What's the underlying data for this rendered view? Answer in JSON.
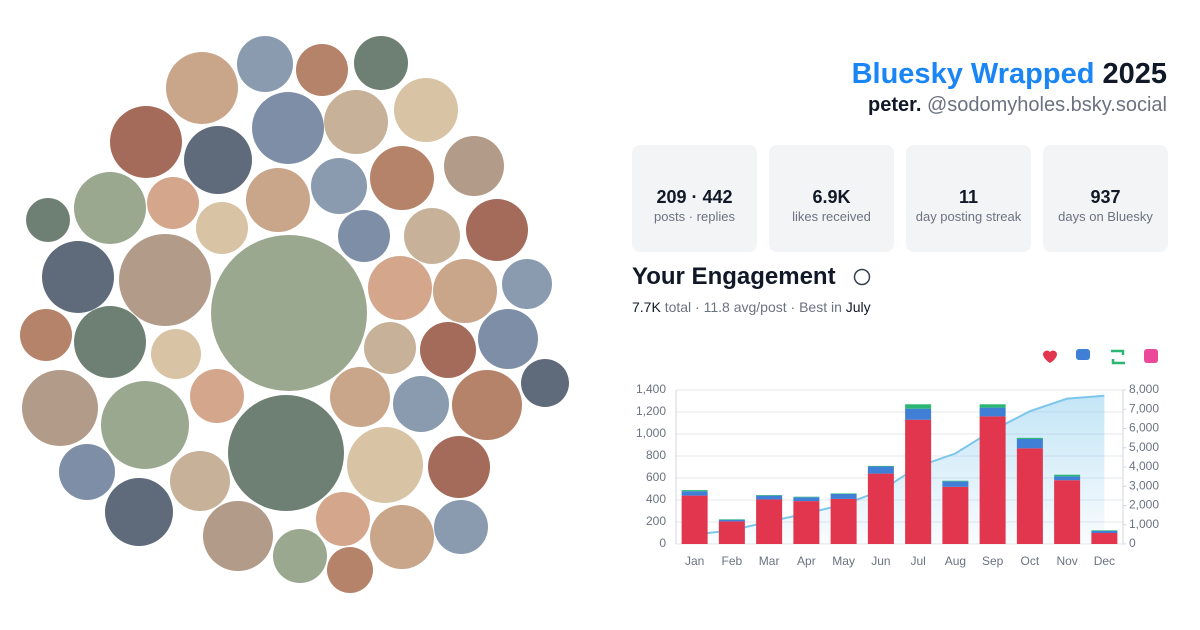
{
  "header": {
    "title": "Bluesky Wrapped",
    "year": "2025",
    "name": "peter.",
    "handle": "@sodomyholes.bsky.social"
  },
  "stats": [
    {
      "value": "209 · 442",
      "label": "posts · replies"
    },
    {
      "value": "6.9K",
      "label": "likes received"
    },
    {
      "value": "11",
      "label": "day posting streak"
    },
    {
      "value": "937",
      "label": "days on Bluesky"
    }
  ],
  "engagement": {
    "title": "Your Engagement",
    "total": "7.7K",
    "summary": "total · 11.8 avg/post · Best in",
    "best_month": "July"
  },
  "chart_data": {
    "type": "bar",
    "stacked": true,
    "categories": [
      "Jan",
      "Feb",
      "Mar",
      "Apr",
      "May",
      "Jun",
      "Jul",
      "Aug",
      "Sep",
      "Oct",
      "Nov",
      "Dec"
    ],
    "series": [
      {
        "color": "#e2364f",
        "values": [
          440,
          205,
          405,
          390,
          410,
          640,
          1130,
          520,
          1160,
          870,
          580,
          100
        ]
      },
      {
        "color": "#3f7fd6",
        "values": [
          40,
          15,
          35,
          35,
          45,
          65,
          100,
          50,
          80,
          85,
          35,
          20
        ]
      },
      {
        "color": "#2bb673",
        "values": [
          10,
          5,
          5,
          5,
          5,
          5,
          40,
          5,
          30,
          10,
          15,
          5
        ]
      },
      {
        "type": "area",
        "axis": "y2",
        "color": "#7cc6ec",
        "values": [
          490,
          715,
          1160,
          1590,
          2050,
          2760,
          4030,
          4700,
          5900,
          6900,
          7550,
          7700
        ]
      }
    ],
    "ylim": [
      0,
      1400
    ],
    "yticks": [
      0,
      200,
      400,
      600,
      800,
      {
        "value": 1000,
        "label": "1,000"
      },
      {
        "value": 1200,
        "label": "1,200"
      },
      {
        "value": 1400,
        "label": "1,400"
      }
    ],
    "y2lim": [
      0,
      8000
    ],
    "y2ticks": [
      0,
      {
        "value": 1000,
        "label": "1,000"
      },
      {
        "value": 2000,
        "label": "2,000"
      },
      {
        "value": 3000,
        "label": "3,000"
      },
      {
        "value": 4000,
        "label": "4,000"
      },
      {
        "value": 5000,
        "label": "5,000"
      },
      {
        "value": 6000,
        "label": "6,000"
      },
      {
        "value": 7000,
        "label": "7,000"
      },
      {
        "value": 8000,
        "label": "8,000"
      }
    ],
    "grid": true
  }
}
